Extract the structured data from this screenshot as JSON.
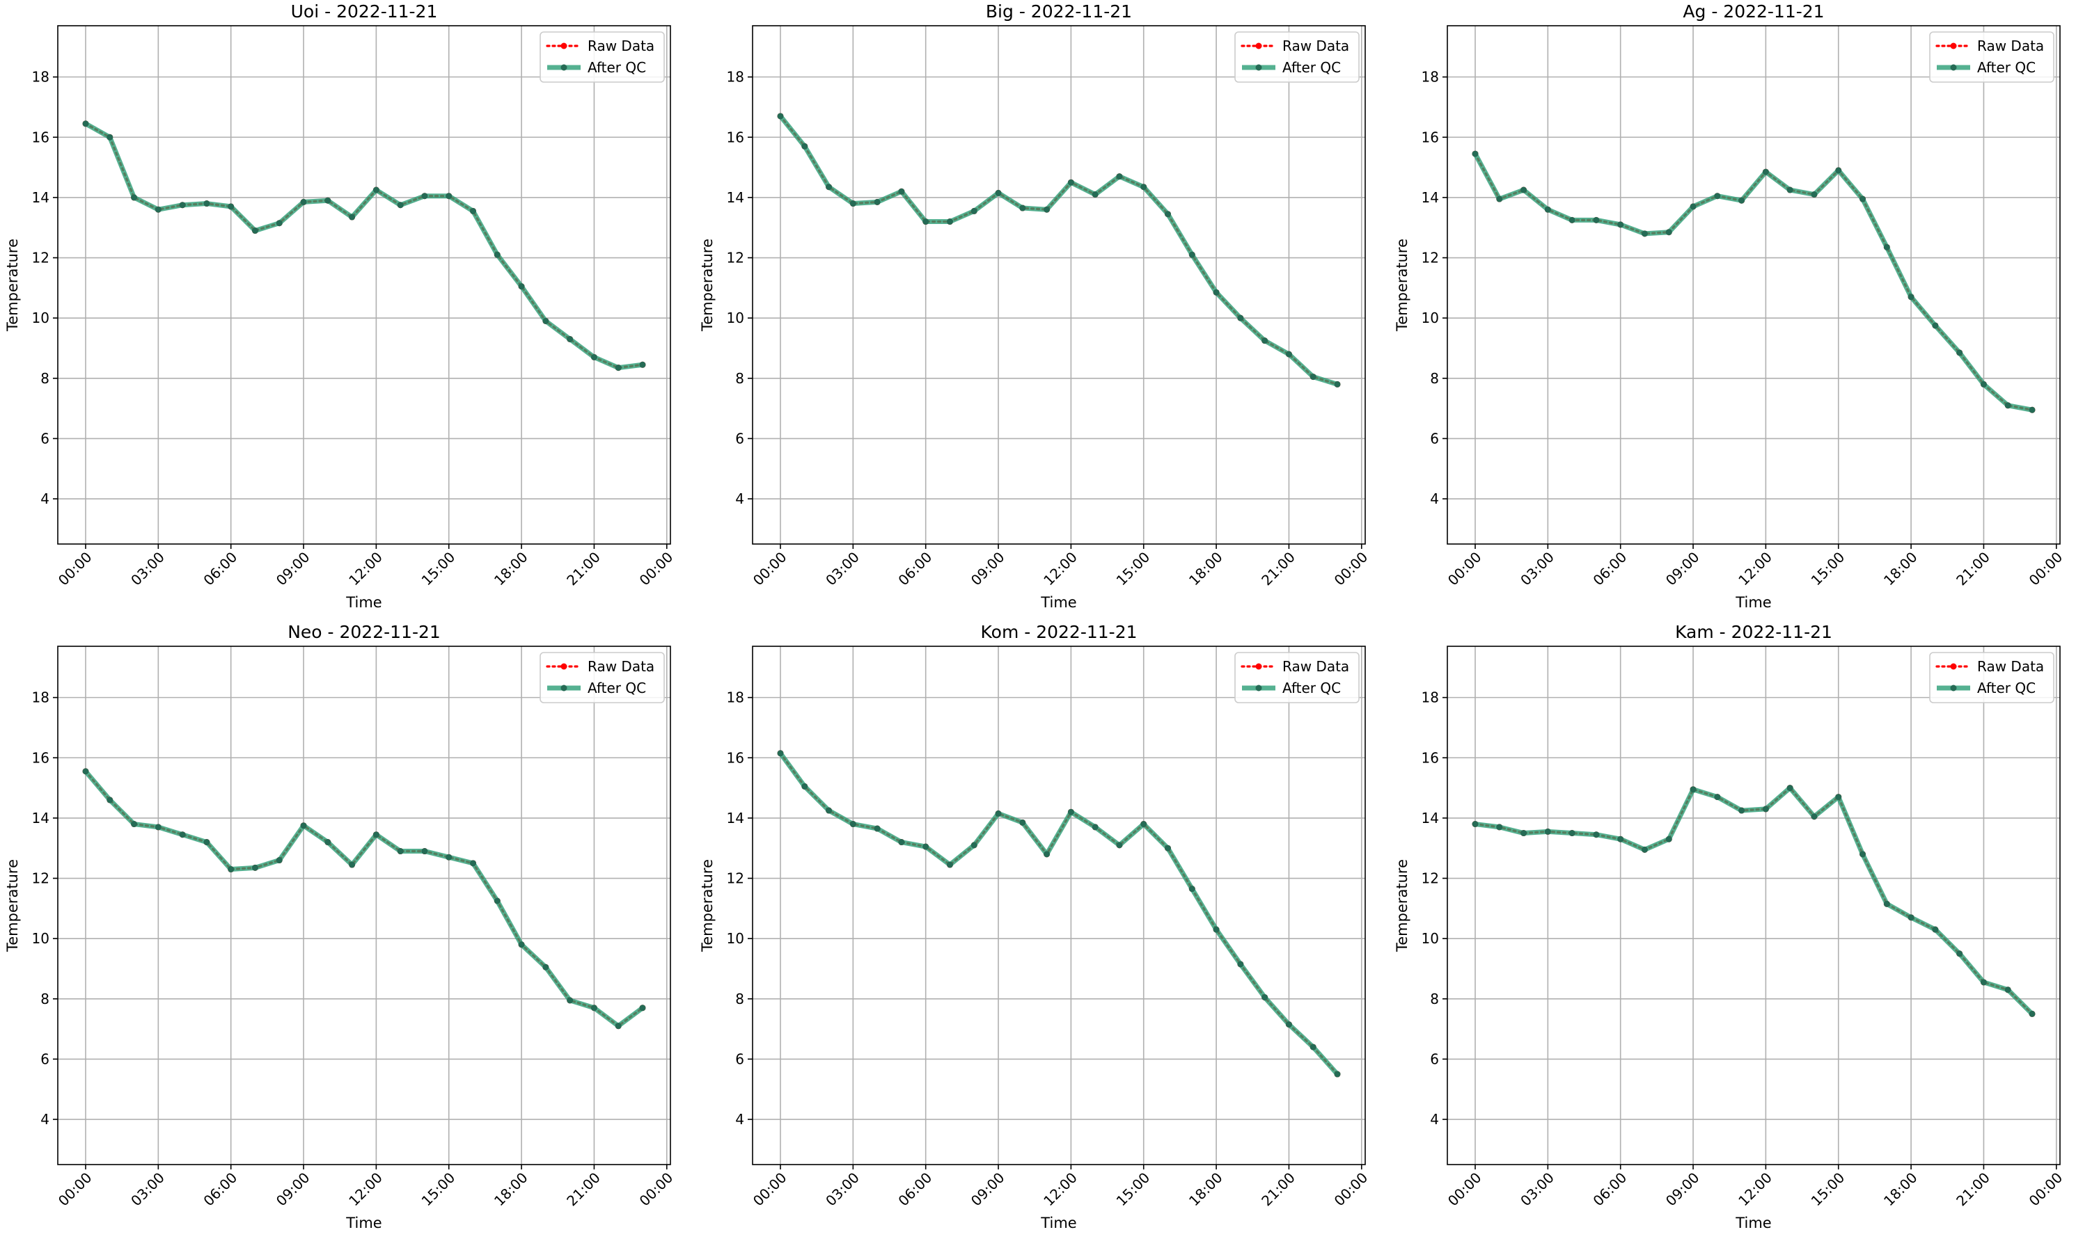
{
  "chart_data": [
    {
      "type": "line",
      "title": "Uoi - 2022-11-21",
      "xlabel": "Time",
      "ylabel": "Temperature",
      "x": [
        "00:00",
        "01:00",
        "02:00",
        "03:00",
        "04:00",
        "05:00",
        "06:00",
        "07:00",
        "08:00",
        "09:00",
        "10:00",
        "11:00",
        "12:00",
        "13:00",
        "14:00",
        "15:00",
        "16:00",
        "17:00",
        "18:00",
        "19:00",
        "20:00",
        "21:00",
        "22:00",
        "23:00"
      ],
      "xlim": [
        "2022-11-21 00:00",
        "2022-11-22 00:00"
      ],
      "ylim": [
        2.5,
        19.7
      ],
      "xticks": [
        "00:00",
        "03:00",
        "06:00",
        "09:00",
        "12:00",
        "15:00",
        "18:00",
        "21:00",
        "00:00"
      ],
      "yticks": [
        4,
        6,
        8,
        10,
        12,
        14,
        16,
        18
      ],
      "grid": true,
      "legend": "upper-right",
      "series": [
        {
          "name": "Raw Data",
          "color": "#ff0000",
          "style": "dotted",
          "values": [
            16.45,
            16.0,
            14.0,
            13.6,
            13.75,
            13.8,
            13.7,
            12.9,
            13.15,
            13.85,
            13.9,
            13.35,
            14.25,
            13.75,
            14.05,
            14.05,
            13.55,
            12.1,
            11.05,
            9.9,
            9.3,
            8.7,
            8.35,
            8.45
          ]
        },
        {
          "name": "After QC",
          "color": "#2a9d76",
          "style": "solid",
          "values": [
            16.45,
            16.0,
            14.0,
            13.6,
            13.75,
            13.8,
            13.7,
            12.9,
            13.15,
            13.85,
            13.9,
            13.35,
            14.25,
            13.75,
            14.05,
            14.05,
            13.55,
            12.1,
            11.05,
            9.9,
            9.3,
            8.7,
            8.35,
            8.45
          ]
        }
      ]
    },
    {
      "type": "line",
      "title": "Big - 2022-11-21",
      "xlabel": "Time",
      "ylabel": "Temperature",
      "x": [
        "00:00",
        "01:00",
        "02:00",
        "03:00",
        "04:00",
        "05:00",
        "06:00",
        "07:00",
        "08:00",
        "09:00",
        "10:00",
        "11:00",
        "12:00",
        "13:00",
        "14:00",
        "15:00",
        "16:00",
        "17:00",
        "18:00",
        "19:00",
        "20:00",
        "21:00",
        "22:00",
        "23:00"
      ],
      "xlim": [
        "2022-11-21 00:00",
        "2022-11-22 00:00"
      ],
      "ylim": [
        2.5,
        19.7
      ],
      "xticks": [
        "00:00",
        "03:00",
        "06:00",
        "09:00",
        "12:00",
        "15:00",
        "18:00",
        "21:00",
        "00:00"
      ],
      "yticks": [
        4,
        6,
        8,
        10,
        12,
        14,
        16,
        18
      ],
      "grid": true,
      "legend": "upper-right",
      "series": [
        {
          "name": "Raw Data",
          "color": "#ff0000",
          "style": "dotted",
          "values": [
            16.7,
            15.7,
            14.35,
            13.8,
            13.85,
            14.2,
            13.2,
            13.2,
            13.55,
            14.15,
            13.65,
            13.6,
            14.5,
            14.1,
            14.7,
            14.35,
            13.45,
            12.1,
            10.85,
            10.0,
            9.25,
            8.8,
            8.05,
            7.8
          ]
        },
        {
          "name": "After QC",
          "color": "#2a9d76",
          "style": "solid",
          "values": [
            16.7,
            15.7,
            14.35,
            13.8,
            13.85,
            14.2,
            13.2,
            13.2,
            13.55,
            14.15,
            13.65,
            13.6,
            14.5,
            14.1,
            14.7,
            14.35,
            13.45,
            12.1,
            10.85,
            10.0,
            9.25,
            8.8,
            8.05,
            7.8
          ]
        }
      ]
    },
    {
      "type": "line",
      "title": "Ag - 2022-11-21",
      "xlabel": "Time",
      "ylabel": "Temperature",
      "x": [
        "00:00",
        "01:00",
        "02:00",
        "03:00",
        "04:00",
        "05:00",
        "06:00",
        "07:00",
        "08:00",
        "09:00",
        "10:00",
        "11:00",
        "12:00",
        "13:00",
        "14:00",
        "15:00",
        "16:00",
        "17:00",
        "18:00",
        "19:00",
        "20:00",
        "21:00",
        "22:00",
        "23:00"
      ],
      "xlim": [
        "2022-11-21 00:00",
        "2022-11-22 00:00"
      ],
      "ylim": [
        2.5,
        19.7
      ],
      "xticks": [
        "00:00",
        "03:00",
        "06:00",
        "09:00",
        "12:00",
        "15:00",
        "18:00",
        "21:00",
        "00:00"
      ],
      "yticks": [
        4,
        6,
        8,
        10,
        12,
        14,
        16,
        18
      ],
      "grid": true,
      "legend": "upper-right",
      "series": [
        {
          "name": "Raw Data",
          "color": "#ff0000",
          "style": "dotted",
          "values": [
            15.45,
            13.95,
            14.25,
            13.6,
            13.25,
            13.25,
            13.1,
            12.8,
            12.85,
            13.7,
            14.05,
            13.9,
            14.85,
            14.25,
            14.1,
            14.9,
            13.95,
            12.35,
            10.7,
            9.75,
            8.85,
            7.8,
            7.1,
            6.95
          ]
        },
        {
          "name": "After QC",
          "color": "#2a9d76",
          "style": "solid",
          "values": [
            15.45,
            13.95,
            14.25,
            13.6,
            13.25,
            13.25,
            13.1,
            12.8,
            12.85,
            13.7,
            14.05,
            13.9,
            14.85,
            14.25,
            14.1,
            14.9,
            13.95,
            12.35,
            10.7,
            9.75,
            8.85,
            7.8,
            7.1,
            6.95
          ]
        }
      ]
    },
    {
      "type": "line",
      "title": "Neo - 2022-11-21",
      "xlabel": "Time",
      "ylabel": "Temperature",
      "x": [
        "00:00",
        "01:00",
        "02:00",
        "03:00",
        "04:00",
        "05:00",
        "06:00",
        "07:00",
        "08:00",
        "09:00",
        "10:00",
        "11:00",
        "12:00",
        "13:00",
        "14:00",
        "15:00",
        "16:00",
        "17:00",
        "18:00",
        "19:00",
        "20:00",
        "21:00",
        "22:00",
        "23:00"
      ],
      "xlim": [
        "2022-11-21 00:00",
        "2022-11-22 00:00"
      ],
      "ylim": [
        2.5,
        19.7
      ],
      "xticks": [
        "00:00",
        "03:00",
        "06:00",
        "09:00",
        "12:00",
        "15:00",
        "18:00",
        "21:00",
        "00:00"
      ],
      "yticks": [
        4,
        6,
        8,
        10,
        12,
        14,
        16,
        18
      ],
      "grid": true,
      "legend": "upper-right",
      "series": [
        {
          "name": "Raw Data",
          "color": "#ff0000",
          "style": "dotted",
          "values": [
            15.55,
            14.6,
            13.8,
            13.7,
            13.45,
            13.2,
            12.3,
            12.35,
            12.6,
            13.75,
            13.2,
            12.45,
            13.45,
            12.9,
            12.9,
            12.7,
            12.5,
            11.25,
            9.8,
            9.05,
            7.95,
            7.7,
            7.1,
            7.7
          ]
        },
        {
          "name": "After QC",
          "color": "#2a9d76",
          "style": "solid",
          "values": [
            15.55,
            14.6,
            13.8,
            13.7,
            13.45,
            13.2,
            12.3,
            12.35,
            12.6,
            13.75,
            13.2,
            12.45,
            13.45,
            12.9,
            12.9,
            12.7,
            12.5,
            11.25,
            9.8,
            9.05,
            7.95,
            7.7,
            7.1,
            7.7
          ]
        }
      ]
    },
    {
      "type": "line",
      "title": "Kom - 2022-11-21",
      "xlabel": "Time",
      "ylabel": "Temperature",
      "x": [
        "00:00",
        "01:00",
        "02:00",
        "03:00",
        "04:00",
        "05:00",
        "06:00",
        "07:00",
        "08:00",
        "09:00",
        "10:00",
        "11:00",
        "12:00",
        "13:00",
        "14:00",
        "15:00",
        "16:00",
        "17:00",
        "18:00",
        "19:00",
        "20:00",
        "21:00",
        "22:00",
        "23:00"
      ],
      "xlim": [
        "2022-11-21 00:00",
        "2022-11-22 00:00"
      ],
      "ylim": [
        2.5,
        19.7
      ],
      "xticks": [
        "00:00",
        "03:00",
        "06:00",
        "09:00",
        "12:00",
        "15:00",
        "18:00",
        "21:00",
        "00:00"
      ],
      "yticks": [
        4,
        6,
        8,
        10,
        12,
        14,
        16,
        18
      ],
      "grid": true,
      "legend": "upper-right",
      "series": [
        {
          "name": "Raw Data",
          "color": "#ff0000",
          "style": "dotted",
          "values": [
            16.15,
            15.05,
            14.25,
            13.8,
            13.65,
            13.2,
            13.05,
            12.45,
            13.1,
            14.15,
            13.85,
            12.8,
            14.2,
            13.7,
            13.1,
            13.8,
            13.0,
            11.65,
            10.3,
            9.15,
            8.05,
            7.15,
            6.4,
            5.5
          ]
        },
        {
          "name": "After QC",
          "color": "#2a9d76",
          "style": "solid",
          "values": [
            16.15,
            15.05,
            14.25,
            13.8,
            13.65,
            13.2,
            13.05,
            12.45,
            13.1,
            14.15,
            13.85,
            12.8,
            14.2,
            13.7,
            13.1,
            13.8,
            13.0,
            11.65,
            10.3,
            9.15,
            8.05,
            7.15,
            6.4,
            5.5
          ]
        }
      ]
    },
    {
      "type": "line",
      "title": "Kam - 2022-11-21",
      "xlabel": "Time",
      "ylabel": "Temperature",
      "x": [
        "00:00",
        "01:00",
        "02:00",
        "03:00",
        "04:00",
        "05:00",
        "06:00",
        "07:00",
        "08:00",
        "09:00",
        "10:00",
        "11:00",
        "12:00",
        "13:00",
        "14:00",
        "15:00",
        "16:00",
        "17:00",
        "18:00",
        "19:00",
        "20:00",
        "21:00",
        "22:00",
        "23:00"
      ],
      "xlim": [
        "2022-11-21 00:00",
        "2022-11-22 00:00"
      ],
      "ylim": [
        2.5,
        19.7
      ],
      "xticks": [
        "00:00",
        "03:00",
        "06:00",
        "09:00",
        "12:00",
        "15:00",
        "18:00",
        "21:00",
        "00:00"
      ],
      "yticks": [
        4,
        6,
        8,
        10,
        12,
        14,
        16,
        18
      ],
      "grid": true,
      "legend": "upper-right",
      "series": [
        {
          "name": "Raw Data",
          "color": "#ff0000",
          "style": "dotted",
          "values": [
            13.8,
            13.7,
            13.5,
            13.55,
            13.5,
            13.45,
            13.3,
            12.95,
            13.3,
            14.95,
            14.7,
            14.25,
            14.3,
            15.0,
            14.05,
            14.7,
            12.8,
            11.15,
            10.7,
            10.3,
            9.5,
            8.55,
            8.3,
            7.5
          ]
        },
        {
          "name": "After QC",
          "color": "#2a9d76",
          "style": "solid",
          "values": [
            13.8,
            13.7,
            13.5,
            13.55,
            13.5,
            13.45,
            13.3,
            12.95,
            13.3,
            14.95,
            14.7,
            14.25,
            14.3,
            15.0,
            14.05,
            14.7,
            12.8,
            11.15,
            10.7,
            10.3,
            9.5,
            8.55,
            8.3,
            7.5
          ]
        }
      ]
    }
  ]
}
